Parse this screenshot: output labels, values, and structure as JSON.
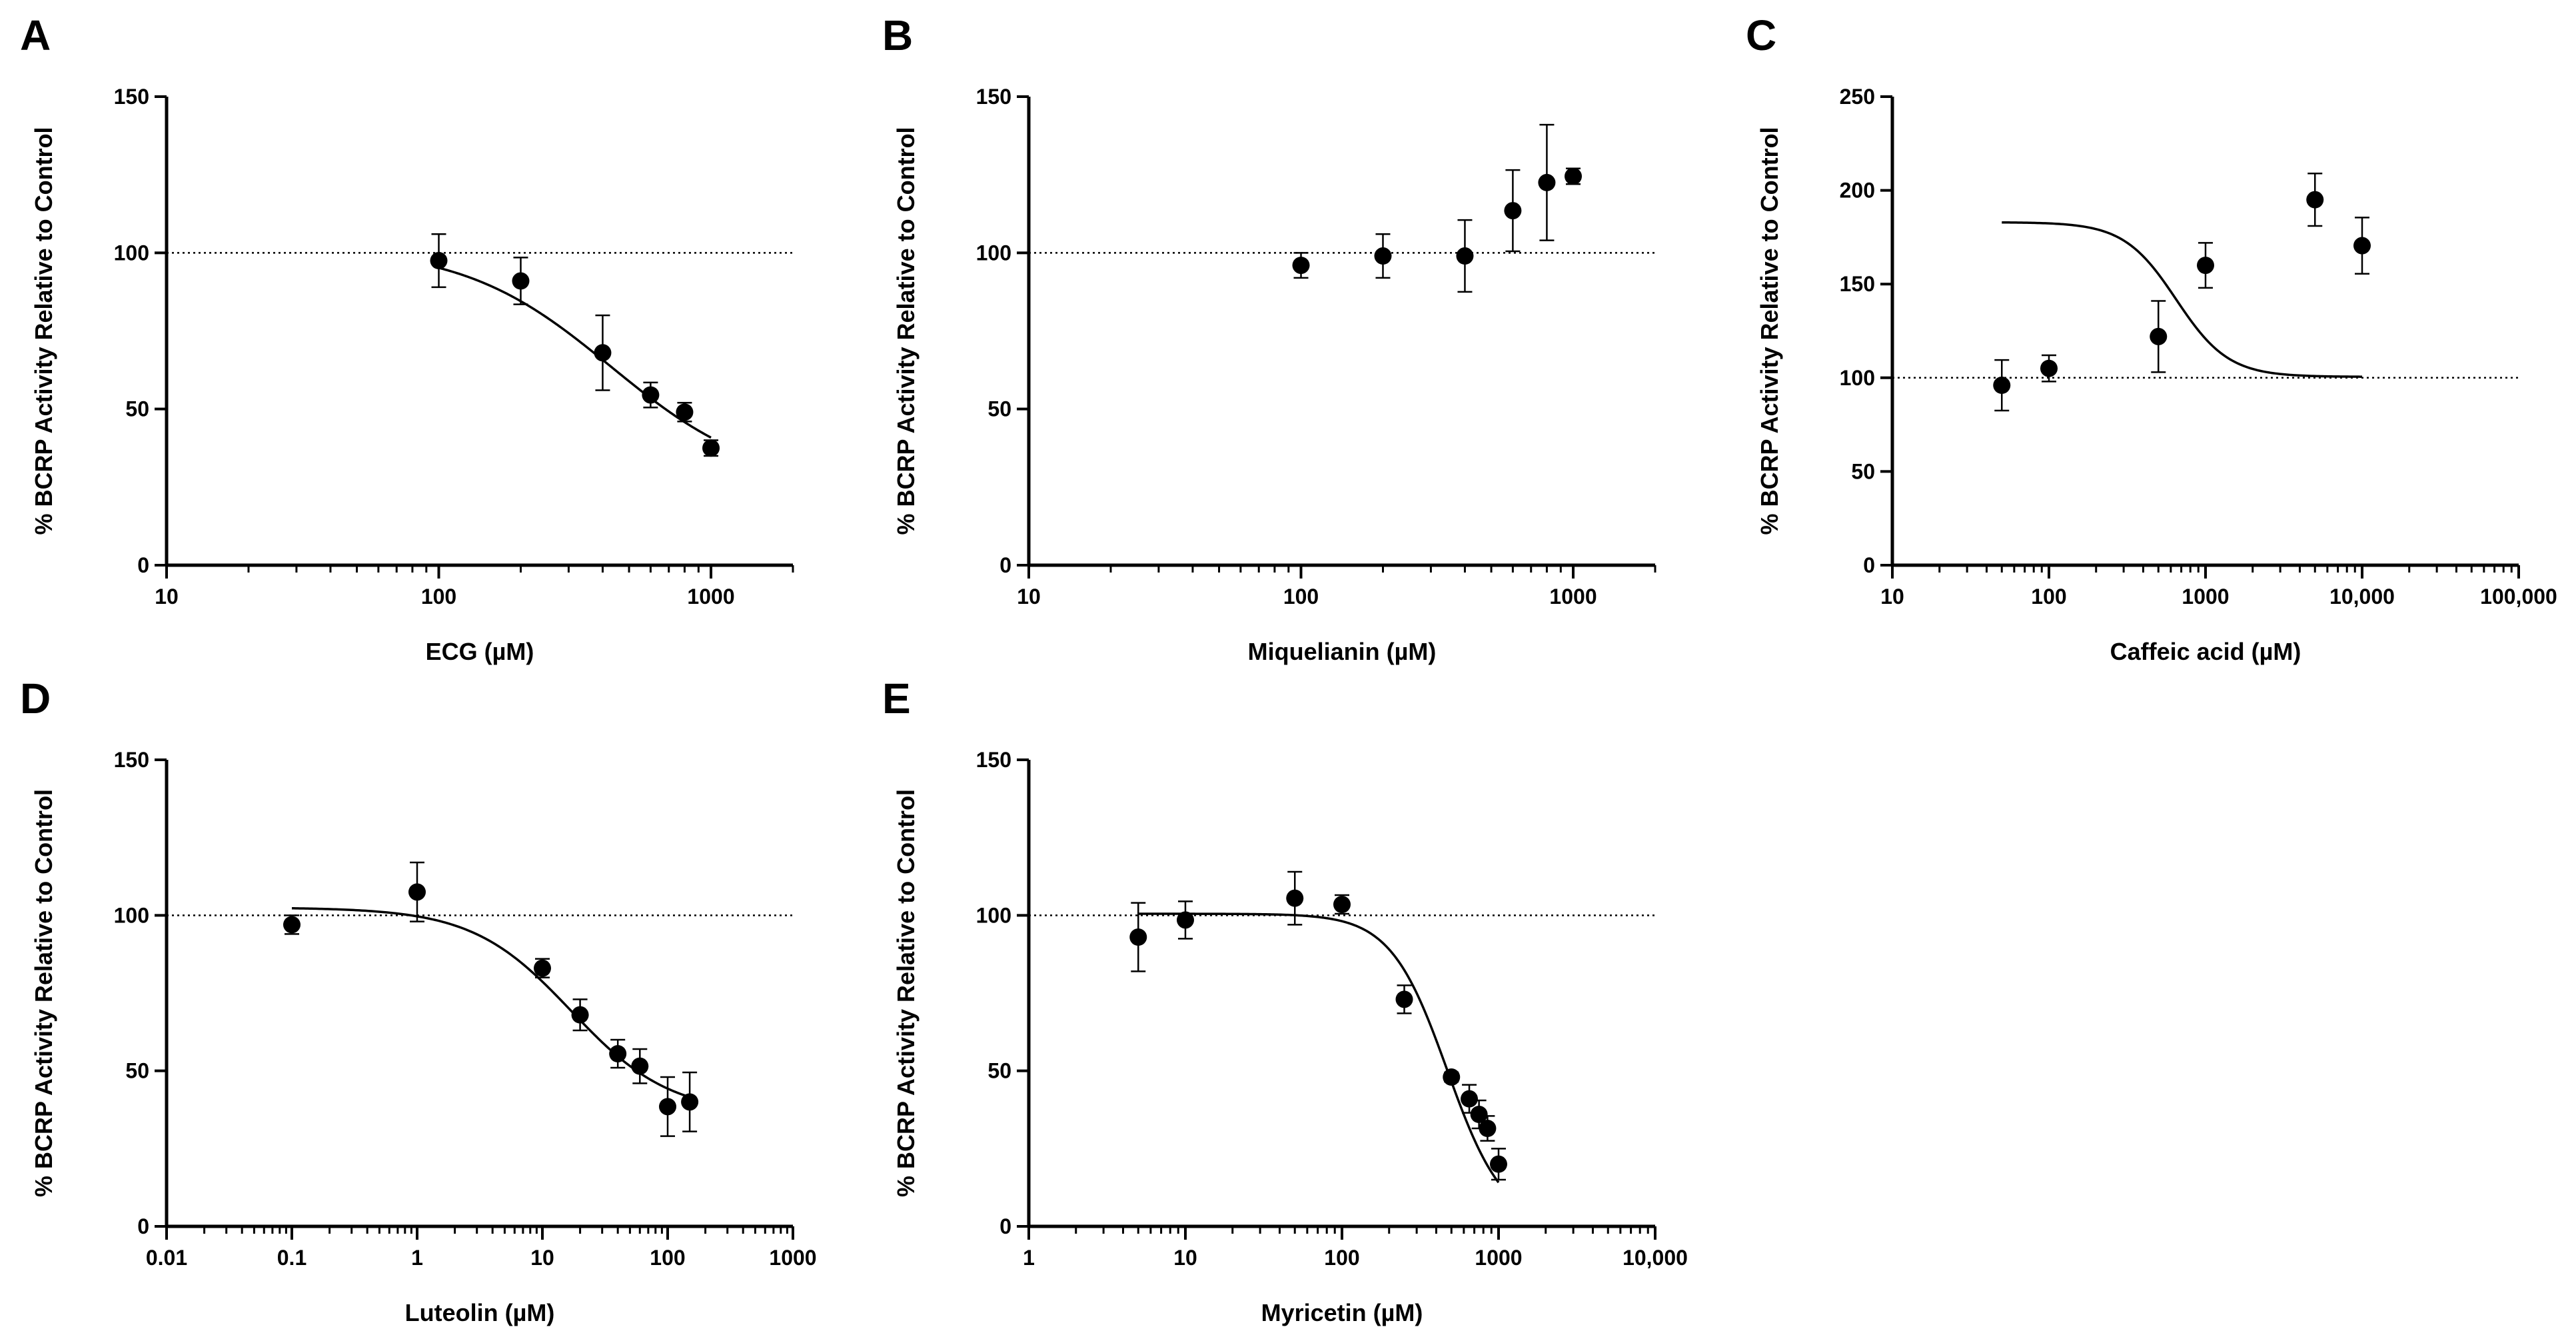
{
  "figure": {
    "ylabel": "% BCRP Activity Relative to Control"
  },
  "chart_data": [
    {
      "panel": "A",
      "type": "scatter",
      "xlabel": "ECG (µM)",
      "ylabel": "% BCRP Activity Relative to Control",
      "x_scale": "log",
      "xlim": [
        10,
        2000
      ],
      "ylim": [
        0,
        150
      ],
      "x_ticks": [
        10,
        100,
        1000
      ],
      "x_tick_labels": [
        "10",
        "100",
        "1000"
      ],
      "y_ticks": [
        0,
        50,
        100,
        150
      ],
      "y_tick_labels": [
        "0",
        "50",
        "100",
        "150"
      ],
      "reference_line": 100,
      "series": [
        {
          "x": [
            100,
            200,
            400,
            600,
            800,
            1000
          ],
          "y": [
            97.5,
            91,
            68,
            54.5,
            49,
            37.5
          ],
          "error": [
            8.5,
            7.5,
            12,
            4,
            3,
            2.5
          ]
        }
      ],
      "fit": {
        "top": 102,
        "bottom": 25,
        "ec50": 430,
        "hill": 1.6
      }
    },
    {
      "panel": "B",
      "type": "scatter",
      "xlabel": "Miquelianin (µM)",
      "ylabel": "% BCRP Activity Relative to Control",
      "x_scale": "log",
      "xlim": [
        10,
        2000
      ],
      "ylim": [
        0,
        150
      ],
      "x_ticks": [
        10,
        100,
        1000
      ],
      "x_tick_labels": [
        "10",
        "100",
        "1000"
      ],
      "y_ticks": [
        0,
        50,
        100,
        150
      ],
      "y_tick_labels": [
        "0",
        "50",
        "100",
        "150"
      ],
      "reference_line": 100,
      "series": [
        {
          "x": [
            100,
            200,
            400,
            600,
            800,
            1000
          ],
          "y": [
            96,
            99,
            99,
            113.5,
            122.5,
            124.5
          ],
          "error": [
            4,
            7,
            11.5,
            13,
            18.5,
            2.5
          ]
        }
      ]
    },
    {
      "panel": "C",
      "type": "scatter",
      "xlabel": "Caffeic acid (µM)",
      "ylabel": "% BCRP Activity Relative to Control",
      "x_scale": "log",
      "xlim": [
        10,
        100000
      ],
      "ylim": [
        0,
        250
      ],
      "x_ticks": [
        10,
        100,
        1000,
        10000,
        100000
      ],
      "x_tick_labels": [
        "10",
        "100",
        "1000",
        "10,000",
        "100,000"
      ],
      "y_ticks": [
        0,
        50,
        100,
        150,
        200,
        250
      ],
      "y_tick_labels": [
        "0",
        "50",
        "100",
        "150",
        "200",
        "250"
      ],
      "reference_line": 100,
      "series": [
        {
          "x": [
            50,
            100,
            500,
            1000,
            5000,
            10000
          ],
          "y": [
            96,
            105,
            122,
            160,
            195,
            170.5
          ],
          "error": [
            13.5,
            7,
            19,
            12,
            14,
            15
          ]
        }
      ],
      "fit": {
        "top": 183,
        "bottom": 100.5,
        "ec50": 650,
        "hill": 2.6
      }
    },
    {
      "panel": "D",
      "type": "scatter",
      "xlabel": "Luteolin (µM)",
      "ylabel": "% BCRP Activity Relative to Control",
      "x_scale": "log",
      "xlim": [
        0.01,
        1000
      ],
      "ylim": [
        0,
        150
      ],
      "x_ticks": [
        0.01,
        0.1,
        1,
        10,
        100,
        1000
      ],
      "x_tick_labels": [
        "0.01",
        "0.1",
        "1",
        "10",
        "100",
        "1000"
      ],
      "y_ticks": [
        0,
        50,
        100,
        150
      ],
      "y_tick_labels": [
        "0",
        "50",
        "100",
        "150"
      ],
      "reference_line": 100,
      "series": [
        {
          "x": [
            0.1,
            1,
            10,
            20,
            40,
            60,
            100,
            150
          ],
          "y": [
            97,
            107.5,
            83,
            68,
            55.5,
            51.5,
            38.5,
            40
          ],
          "error": [
            3,
            9.5,
            3,
            5,
            4.5,
            5.5,
            9.5,
            9.5
          ]
        }
      ],
      "fit": {
        "top": 102.5,
        "bottom": 36,
        "ec50": 17,
        "hill": 1.1
      }
    },
    {
      "panel": "E",
      "type": "scatter",
      "xlabel": "Myricetin (µM)",
      "ylabel": "% BCRP Activity Relative to Control",
      "x_scale": "log",
      "xlim": [
        1,
        10000
      ],
      "ylim": [
        0,
        150
      ],
      "x_ticks": [
        1,
        10,
        100,
        1000,
        10000
      ],
      "x_tick_labels": [
        "1",
        "10",
        "100",
        "1000",
        "10,000"
      ],
      "y_ticks": [
        0,
        50,
        100,
        150
      ],
      "y_tick_labels": [
        "0",
        "50",
        "100",
        "150"
      ],
      "reference_line": 100,
      "series": [
        {
          "x": [
            5,
            10,
            50,
            100,
            250,
            500,
            650,
            750,
            850,
            1000
          ],
          "y": [
            93,
            98.5,
            105.5,
            103.5,
            73,
            48,
            41,
            36,
            31.5,
            20
          ],
          "error": [
            11,
            6,
            8.5,
            3,
            4.5,
            1.5,
            4.5,
            4.5,
            4,
            5
          ]
        }
      ],
      "fit": {
        "top": 100.5,
        "bottom": 0,
        "ec50": 470,
        "hill": 2.4
      }
    }
  ]
}
